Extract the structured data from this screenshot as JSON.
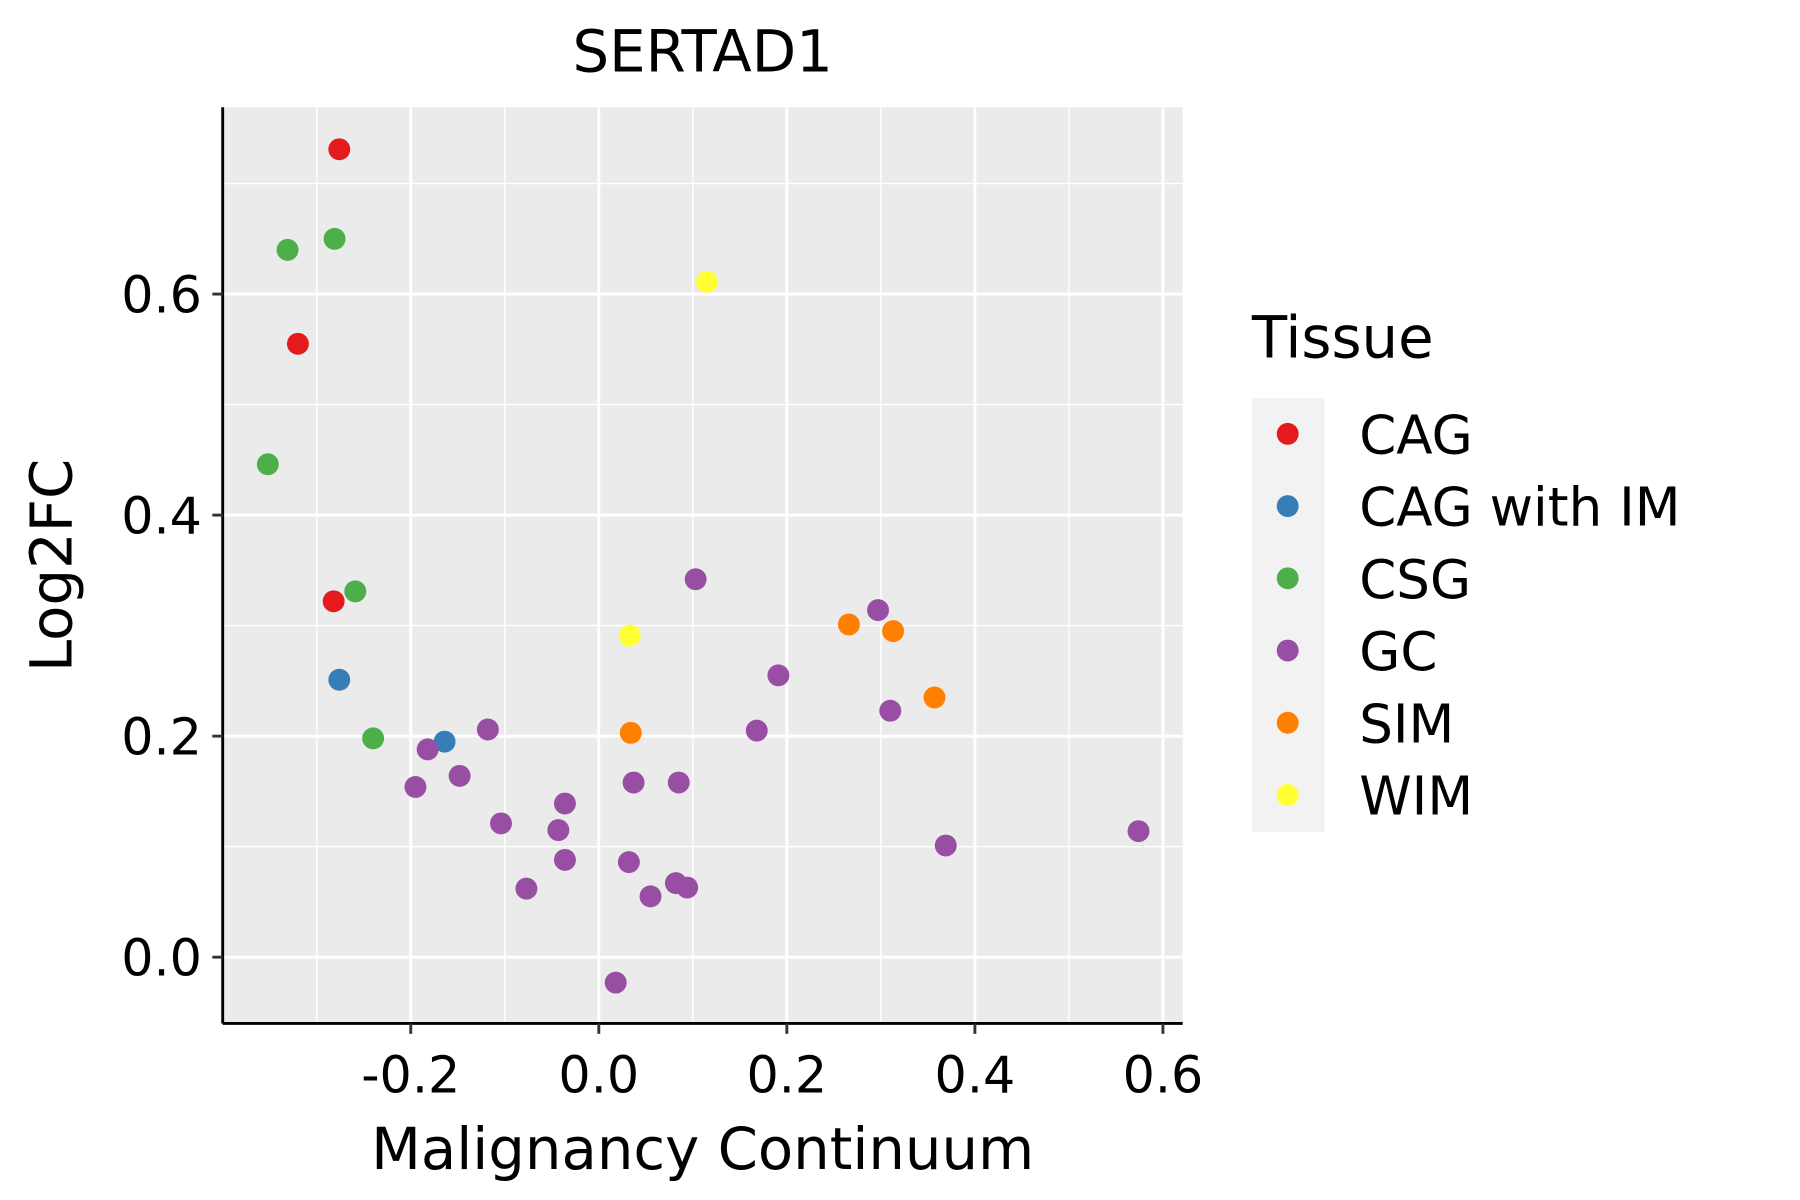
{
  "chart_data": {
    "type": "scatter",
    "title": "SERTAD1",
    "xlabel": "Malignancy Continuum",
    "ylabel": "Log2FC",
    "xlim": [
      -0.4,
      0.621
    ],
    "ylim": [
      -0.06,
      0.769
    ],
    "xticks": [
      -0.2,
      0.0,
      0.2,
      0.4,
      0.6
    ],
    "xtick_labels": [
      "-0.2",
      "0.0",
      "0.2",
      "0.4",
      "0.6"
    ],
    "yticks": [
      0.0,
      0.2,
      0.4,
      0.6
    ],
    "ytick_labels": [
      "0.0",
      "0.2",
      "0.4",
      "0.6"
    ],
    "grid": true,
    "legend": {
      "title": "Tissue",
      "placement": "right",
      "entries": [
        {
          "label": "CAG",
          "color": "#E41A1C"
        },
        {
          "label": "CAG with IM",
          "color": "#377EB8"
        },
        {
          "label": "CSG",
          "color": "#4DAF4A"
        },
        {
          "label": "GC",
          "color": "#984EA3"
        },
        {
          "label": "SIM",
          "color": "#FF7F00"
        },
        {
          "label": "WIM",
          "color": "#FFFF33"
        }
      ]
    },
    "series": [
      {
        "name": "CAG",
        "points": [
          [
            -0.276,
            0.731
          ],
          [
            -0.32,
            0.555
          ],
          [
            -0.282,
            0.322
          ]
        ]
      },
      {
        "name": "CAG with IM",
        "points": [
          [
            -0.276,
            0.251
          ],
          [
            -0.164,
            0.195
          ]
        ]
      },
      {
        "name": "CSG",
        "points": [
          [
            -0.331,
            0.64
          ],
          [
            -0.281,
            0.65
          ],
          [
            -0.352,
            0.446
          ],
          [
            -0.259,
            0.331
          ],
          [
            -0.24,
            0.198
          ]
        ]
      },
      {
        "name": "GC",
        "points": [
          [
            0.103,
            0.342
          ],
          [
            0.297,
            0.314
          ],
          [
            0.191,
            0.255
          ],
          [
            0.31,
            0.223
          ],
          [
            0.168,
            0.205
          ],
          [
            -0.118,
            0.206
          ],
          [
            -0.182,
            0.188
          ],
          [
            -0.148,
            0.164
          ],
          [
            -0.195,
            0.154
          ],
          [
            0.037,
            0.158
          ],
          [
            0.085,
            0.158
          ],
          [
            -0.036,
            0.139
          ],
          [
            -0.104,
            0.121
          ],
          [
            -0.043,
            0.115
          ],
          [
            0.574,
            0.114
          ],
          [
            0.369,
            0.101
          ],
          [
            -0.036,
            0.088
          ],
          [
            0.032,
            0.086
          ],
          [
            0.082,
            0.067
          ],
          [
            0.094,
            0.063
          ],
          [
            -0.077,
            0.062
          ],
          [
            0.055,
            0.055
          ],
          [
            0.018,
            -0.023
          ]
        ]
      },
      {
        "name": "SIM",
        "points": [
          [
            0.266,
            0.301
          ],
          [
            0.313,
            0.295
          ],
          [
            0.357,
            0.235
          ],
          [
            0.034,
            0.203
          ]
        ]
      },
      {
        "name": "WIM",
        "points": [
          [
            0.115,
            0.611
          ],
          [
            0.033,
            0.291
          ]
        ]
      }
    ]
  }
}
